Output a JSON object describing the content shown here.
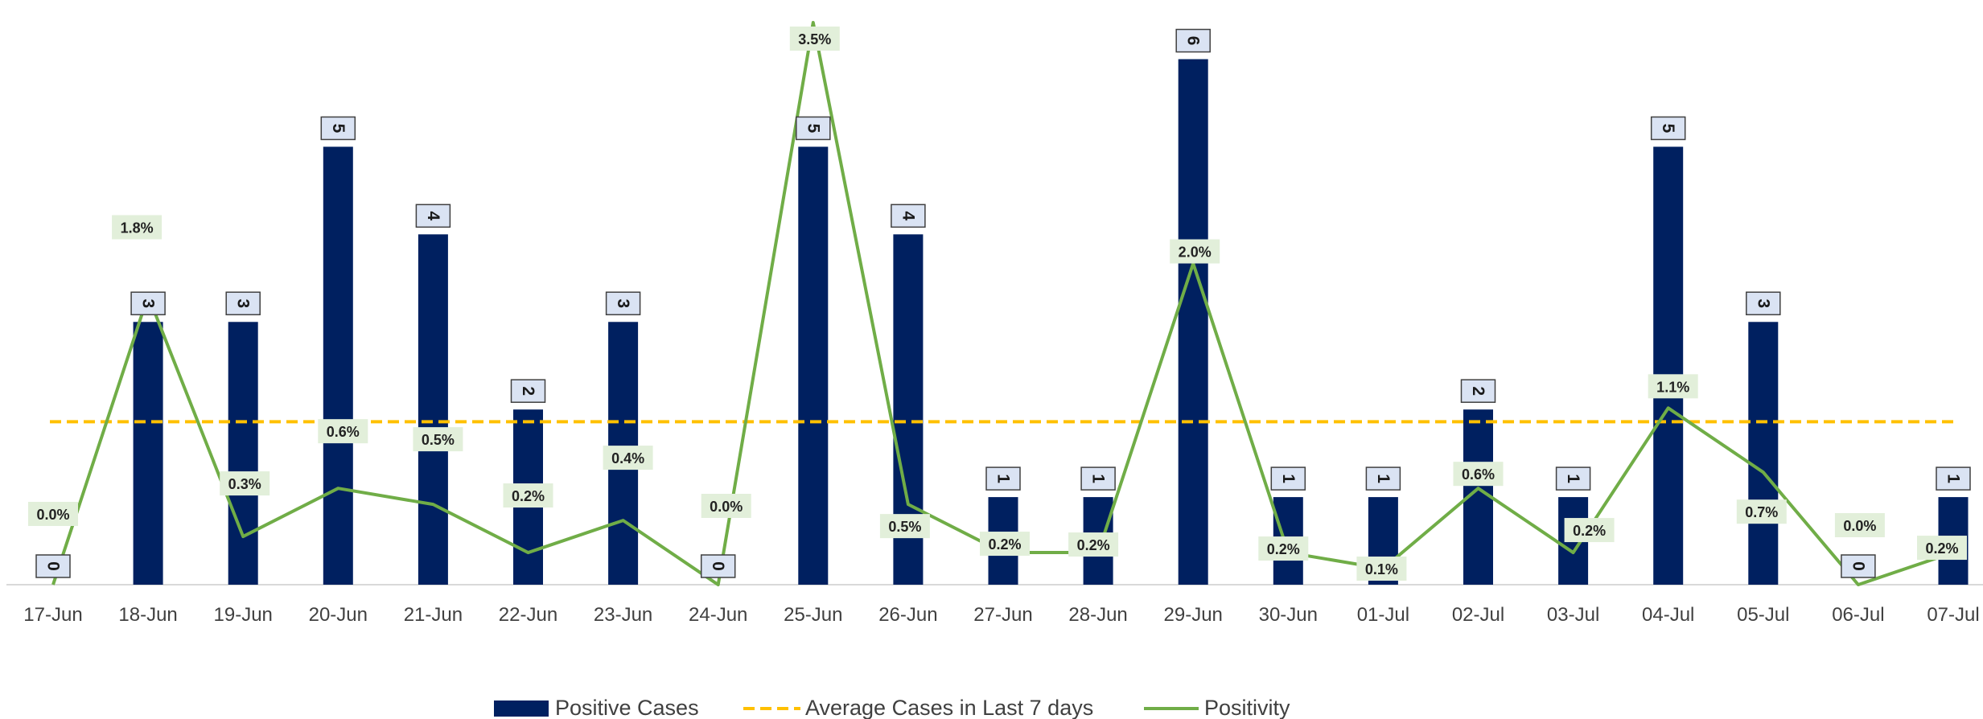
{
  "chart_data": {
    "type": "bar",
    "categories": [
      "17-Jun",
      "18-Jun",
      "19-Jun",
      "20-Jun",
      "21-Jun",
      "22-Jun",
      "23-Jun",
      "24-Jun",
      "25-Jun",
      "26-Jun",
      "27-Jun",
      "28-Jun",
      "29-Jun",
      "30-Jun",
      "01-Jul",
      "02-Jul",
      "03-Jul",
      "04-Jul",
      "05-Jul",
      "06-Jul",
      "07-Jul"
    ],
    "series": [
      {
        "name": "Positive Cases",
        "kind": "bar",
        "color": "#002060",
        "values": [
          0,
          3,
          3,
          5,
          4,
          2,
          3,
          0,
          5,
          4,
          1,
          1,
          6,
          1,
          1,
          2,
          1,
          5,
          3,
          0,
          1
        ],
        "labels": [
          "0",
          "3",
          "3",
          "5",
          "4",
          "2",
          "3",
          "0",
          "5",
          "4",
          "1",
          "1",
          "6",
          "1",
          "1",
          "2",
          "1",
          "5",
          "3",
          "0",
          "1"
        ]
      },
      {
        "name": "Average Cases in Last 7 days",
        "kind": "line-dashed",
        "color": "#FFC000",
        "value": 1.86
      },
      {
        "name": "Positivity",
        "kind": "line",
        "color": "#70AD47",
        "values": [
          0.0,
          1.8,
          0.3,
          0.6,
          0.5,
          0.2,
          0.4,
          0.0,
          3.5,
          0.5,
          0.2,
          0.2,
          2.0,
          0.2,
          0.1,
          0.6,
          0.2,
          1.1,
          0.7,
          0.0,
          0.2
        ],
        "labels": [
          "0.0%",
          "1.8%",
          "0.3%",
          "0.6%",
          "0.5%",
          "0.2%",
          "0.4%",
          "0.0%",
          "3.5%",
          "0.5%",
          "0.2%",
          "0.2%",
          "2.0%",
          "0.2%",
          "0.1%",
          "0.6%",
          "0.2%",
          "1.1%",
          "0.7%",
          "0.0%",
          "0.2%"
        ]
      }
    ],
    "ylim_cases": [
      0,
      6.4
    ],
    "ylim_positivity": [
      0,
      3.5
    ],
    "grid": false,
    "legend_position": "bottom"
  }
}
